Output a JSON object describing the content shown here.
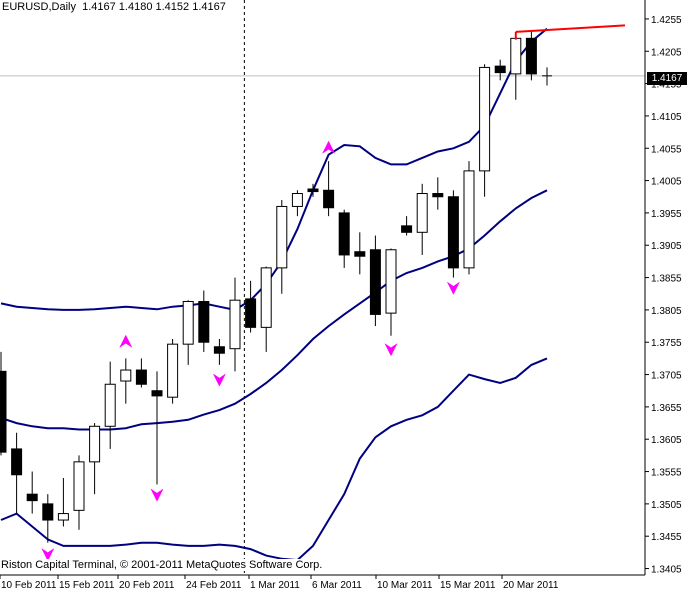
{
  "header": {
    "symbol_label": "EURUSD,Daily",
    "ohlc_text": "1.4167 1.4180 1.4152 1.4167"
  },
  "footer": {
    "copyright": "Riston Capital Terminal, © 2001-2011 MetaQuotes Software Corp."
  },
  "price_tag": "1.4167",
  "colors": {
    "background": "#ffffff",
    "axis": "#000000",
    "band": "#000080",
    "fractal": "#ff00ff",
    "trendline": "#ff0000",
    "bull_body": "#ffffff",
    "bear_body": "#000000",
    "grid_h": "#c0c0c0"
  },
  "chart_data": {
    "type": "candlestick",
    "title": "EURUSD,Daily",
    "y_ticks": [
      "1.4255",
      "1.4205",
      "1.4155",
      "1.4105",
      "1.4055",
      "1.4005",
      "1.3955",
      "1.3905",
      "1.3855",
      "1.3805",
      "1.3755",
      "1.3705",
      "1.3655",
      "1.3605",
      "1.3555",
      "1.3505",
      "1.3455",
      "1.3405"
    ],
    "x_ticks": [
      "10 Feb 2011",
      "15 Feb 2011",
      "20 Feb 2011",
      "24 Feb 2011",
      "1 Mar 2011",
      "6 Mar 2011",
      "10 Mar 2011",
      "15 Mar 2011",
      "20 Mar 2011"
    ],
    "y_range": [
      1.3395,
      1.4275
    ],
    "current_price": 1.4167,
    "candles": [
      {
        "o": 1.371,
        "h": 1.374,
        "l": 1.358,
        "c": 1.3585
      },
      {
        "o": 1.359,
        "h": 1.3615,
        "l": 1.349,
        "c": 1.355
      },
      {
        "o": 1.352,
        "h": 1.3555,
        "l": 1.349,
        "c": 1.351
      },
      {
        "o": 1.3505,
        "h": 1.352,
        "l": 1.3445,
        "c": 1.348
      },
      {
        "o": 1.348,
        "h": 1.3545,
        "l": 1.347,
        "c": 1.349
      },
      {
        "o": 1.3495,
        "h": 1.358,
        "l": 1.3465,
        "c": 1.357
      },
      {
        "o": 1.357,
        "h": 1.363,
        "l": 1.352,
        "c": 1.3625
      },
      {
        "o": 1.3625,
        "h": 1.3725,
        "l": 1.359,
        "c": 1.369
      },
      {
        "o": 1.3695,
        "h": 1.373,
        "l": 1.366,
        "c": 1.3712
      },
      {
        "o": 1.3712,
        "h": 1.373,
        "l": 1.3685,
        "c": 1.369
      },
      {
        "o": 1.368,
        "h": 1.371,
        "l": 1.3535,
        "c": 1.3672
      },
      {
        "o": 1.367,
        "h": 1.376,
        "l": 1.366,
        "c": 1.3752
      },
      {
        "o": 1.3752,
        "h": 1.382,
        "l": 1.372,
        "c": 1.3818
      },
      {
        "o": 1.3818,
        "h": 1.3835,
        "l": 1.374,
        "c": 1.3755
      },
      {
        "o": 1.3748,
        "h": 1.376,
        "l": 1.372,
        "c": 1.3738
      },
      {
        "o": 1.3745,
        "h": 1.3855,
        "l": 1.371,
        "c": 1.382
      },
      {
        "o": 1.3822,
        "h": 1.385,
        "l": 1.377,
        "c": 1.3778
      },
      {
        "o": 1.3778,
        "h": 1.3872,
        "l": 1.374,
        "c": 1.387
      },
      {
        "o": 1.387,
        "h": 1.3975,
        "l": 1.383,
        "c": 1.3965
      },
      {
        "o": 1.3965,
        "h": 1.399,
        "l": 1.395,
        "c": 1.3985
      },
      {
        "o": 1.3992,
        "h": 1.4,
        "l": 1.398,
        "c": 1.3988
      },
      {
        "o": 1.399,
        "h": 1.4035,
        "l": 1.395,
        "c": 1.3963
      },
      {
        "o": 1.3955,
        "h": 1.396,
        "l": 1.387,
        "c": 1.389
      },
      {
        "o": 1.3895,
        "h": 1.3925,
        "l": 1.386,
        "c": 1.3888
      },
      {
        "o": 1.3898,
        "h": 1.392,
        "l": 1.378,
        "c": 1.3798
      },
      {
        "o": 1.38,
        "h": 1.39,
        "l": 1.3765,
        "c": 1.3898
      },
      {
        "o": 1.3935,
        "h": 1.395,
        "l": 1.392,
        "c": 1.3925
      },
      {
        "o": 1.3925,
        "h": 1.4,
        "l": 1.389,
        "c": 1.3985
      },
      {
        "o": 1.3985,
        "h": 1.401,
        "l": 1.396,
        "c": 1.398
      },
      {
        "o": 1.398,
        "h": 1.399,
        "l": 1.3855,
        "c": 1.387
      },
      {
        "o": 1.387,
        "h": 1.4035,
        "l": 1.386,
        "c": 1.402
      },
      {
        "o": 1.402,
        "h": 1.4185,
        "l": 1.398,
        "c": 1.418
      },
      {
        "o": 1.4182,
        "h": 1.4192,
        "l": 1.416,
        "c": 1.4172
      },
      {
        "o": 1.417,
        "h": 1.4235,
        "l": 1.413,
        "c": 1.4225
      },
      {
        "o": 1.4225,
        "h": 1.4235,
        "l": 1.416,
        "c": 1.417
      },
      {
        "o": 1.4167,
        "h": 1.418,
        "l": 1.4152,
        "c": 1.4167
      }
    ],
    "bands": {
      "upper": [
        1.3815,
        1.381,
        1.3808,
        1.3806,
        1.3805,
        1.3805,
        1.3806,
        1.3808,
        1.381,
        1.3808,
        1.3806,
        1.381,
        1.3812,
        1.3815,
        1.381,
        1.3805,
        1.382,
        1.3845,
        1.388,
        1.393,
        1.399,
        1.4045,
        1.406,
        1.4058,
        1.404,
        1.403,
        1.403,
        1.404,
        1.405,
        1.4055,
        1.4065,
        1.409,
        1.414,
        1.419,
        1.422,
        1.424
      ],
      "middle": [
        1.3638,
        1.363,
        1.3625,
        1.3622,
        1.3622,
        1.362,
        1.362,
        1.362,
        1.3622,
        1.3628,
        1.363,
        1.3632,
        1.3635,
        1.3643,
        1.365,
        1.366,
        1.3675,
        1.3692,
        1.3712,
        1.3735,
        1.376,
        1.378,
        1.3798,
        1.3815,
        1.3832,
        1.385,
        1.3862,
        1.387,
        1.388,
        1.3888,
        1.39,
        1.392,
        1.3942,
        1.3962,
        1.3978,
        1.399
      ],
      "lower": [
        1.348,
        1.349,
        1.347,
        1.345,
        1.344,
        1.344,
        1.344,
        1.344,
        1.3442,
        1.3445,
        1.3445,
        1.3442,
        1.344,
        1.344,
        1.3442,
        1.344,
        1.3435,
        1.3425,
        1.342,
        1.3418,
        1.344,
        1.348,
        1.352,
        1.3575,
        1.3608,
        1.3625,
        1.3635,
        1.3642,
        1.3655,
        1.368,
        1.3705,
        1.3698,
        1.3692,
        1.37,
        1.372,
        1.373
      ]
    },
    "fractals": [
      {
        "i": 8,
        "v": 1.3755,
        "dir": "up"
      },
      {
        "i": 10,
        "v": 1.352,
        "dir": "down"
      },
      {
        "i": 14,
        "v": 1.3698,
        "dir": "down"
      },
      {
        "i": 21,
        "v": 1.4055,
        "dir": "up"
      },
      {
        "i": 3,
        "v": 1.3428,
        "dir": "down"
      },
      {
        "i": 25,
        "v": 1.3745,
        "dir": "down"
      },
      {
        "i": 29,
        "v": 1.384,
        "dir": "down"
      }
    ],
    "trendline": {
      "i1": 33,
      "v1": 1.4235,
      "i2": 40,
      "v2": 1.4245
    },
    "vline_index": 15.6
  }
}
